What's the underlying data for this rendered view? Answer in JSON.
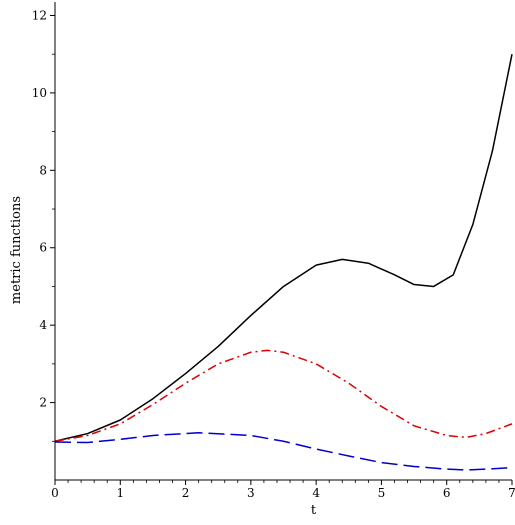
{
  "chart_data": {
    "type": "line",
    "title": "",
    "xlabel": "t",
    "ylabel": "metric functions",
    "xlim": [
      0,
      7
    ],
    "ylim": [
      0,
      12.4
    ],
    "xticks": [
      0,
      1,
      2,
      3,
      4,
      5,
      6,
      7
    ],
    "yticks": [
      2,
      4,
      6,
      8,
      10,
      12
    ],
    "grid": false,
    "legend": "none",
    "series": [
      {
        "color": "#000000",
        "dash": "solid",
        "x": [
          0,
          0.5,
          1,
          1.5,
          2,
          2.5,
          3,
          3.5,
          4,
          4.4,
          4.8,
          5.2,
          5.5,
          5.8,
          6.1,
          6.4,
          6.7,
          7
        ],
        "y": [
          1.0,
          1.2,
          1.55,
          2.1,
          2.75,
          3.45,
          4.25,
          5.0,
          5.55,
          5.7,
          5.6,
          5.3,
          5.05,
          5.0,
          5.3,
          6.6,
          8.5,
          11.0
        ]
      },
      {
        "color": "#dd0000",
        "dash": "dashdot",
        "x": [
          0,
          0.5,
          1,
          1.5,
          2,
          2.5,
          3,
          3.25,
          3.5,
          4,
          4.5,
          5,
          5.5,
          6,
          6.3,
          6.6,
          7
        ],
        "y": [
          1.0,
          1.15,
          1.45,
          1.95,
          2.5,
          3.0,
          3.3,
          3.35,
          3.3,
          3.0,
          2.5,
          1.9,
          1.4,
          1.15,
          1.1,
          1.2,
          1.45
        ]
      },
      {
        "color": "#0000cc",
        "dash": "longdash",
        "x": [
          0,
          0.5,
          1,
          1.5,
          2.2,
          3,
          3.5,
          4,
          4.5,
          5,
          5.5,
          6,
          6.3,
          6.6,
          7
        ],
        "y": [
          0.98,
          0.97,
          1.05,
          1.15,
          1.22,
          1.15,
          1.0,
          0.8,
          0.62,
          0.45,
          0.35,
          0.28,
          0.26,
          0.28,
          0.32
        ]
      }
    ]
  }
}
